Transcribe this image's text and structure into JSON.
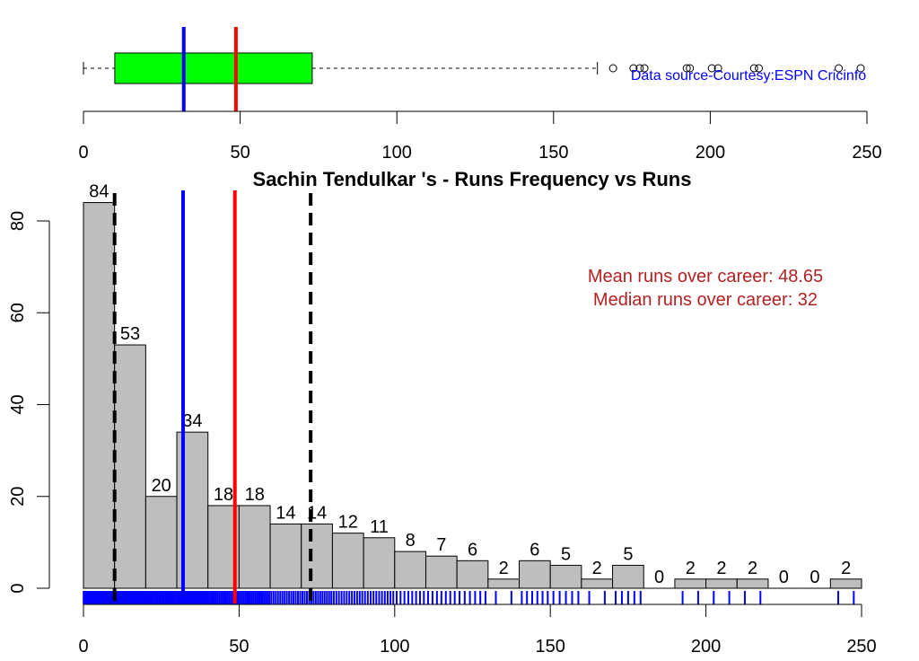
{
  "chart_data": [
    {
      "type": "boxplot",
      "orientation": "horizontal",
      "quartiles": {
        "q1": 10,
        "median": 32,
        "q3": 73
      },
      "whiskers": [
        0,
        164
      ],
      "outliers": [
        169,
        175.5,
        177.5,
        179,
        192.5,
        193.5,
        200.5,
        202.5,
        214,
        215.5,
        241,
        248
      ],
      "mean": 48.65,
      "box_color": "#00FF00",
      "xlim": [
        0,
        250
      ],
      "xticks": [
        "0",
        "50",
        "100",
        "150",
        "200",
        "250"
      ],
      "annotation": "Data source-Courtesy:ESPN Cricinfo",
      "annotation_color": "#0000FF"
    },
    {
      "type": "bar",
      "title": "Sachin Tendulkar 's  - Runs Frequency vs Runs",
      "bin_edges": [
        0,
        10,
        20,
        30,
        40,
        50,
        60,
        70,
        80,
        90,
        100,
        110,
        120,
        130,
        140,
        150,
        160,
        170,
        180,
        190,
        200,
        210,
        220,
        230,
        240,
        250
      ],
      "values": [
        84,
        53,
        20,
        34,
        18,
        18,
        14,
        14,
        12,
        11,
        8,
        7,
        6,
        2,
        6,
        5,
        2,
        5,
        0,
        2,
        2,
        2,
        0,
        0,
        2
      ],
      "data_labels": [
        "84",
        "53",
        "20",
        "34",
        "18",
        "18",
        "14",
        "14",
        "12",
        "11",
        "8",
        "7",
        "6",
        "2",
        "6",
        "5",
        "2",
        "5",
        "0",
        "2",
        "2",
        "2",
        "0",
        "0",
        "2"
      ],
      "xlim": [
        0,
        250
      ],
      "ylim": [
        0,
        85
      ],
      "xticks": [
        "0",
        "50",
        "100",
        "150",
        "200",
        "250"
      ],
      "yticks": [
        "0",
        "20",
        "40",
        "60",
        "80"
      ],
      "bar_color": "#BEBEBE",
      "mean_line": {
        "value": 48.65,
        "color": "#FF0000"
      },
      "median_line": {
        "value": 32,
        "color": "#0000FF"
      },
      "quartile_lines": {
        "values": [
          10,
          73
        ],
        "color": "#000000",
        "style": "dashed"
      },
      "rug_color": "#0000FF",
      "annotations": [
        "Mean runs over career: 48.65",
        "Median runs over career: 32"
      ],
      "annotation_color": "#B22222",
      "grid": false
    }
  ]
}
